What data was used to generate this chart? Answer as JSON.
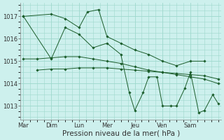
{
  "background_color": "#cdf0ed",
  "grid_color": "#9dd8cc",
  "line_color": "#1a5c2a",
  "xlabel": "Pression niveau de la mer( hPa )",
  "xlabel_fontsize": 7.5,
  "yticks": [
    1013,
    1014,
    1015,
    1016,
    1017
  ],
  "ylim": [
    1012.4,
    1017.6
  ],
  "xlim": [
    -0.1,
    7.1
  ],
  "day_labels": [
    "Mar",
    "Dim",
    "Lun",
    "Mer",
    "Jeu",
    "Ven",
    "Sam"
  ],
  "series": [
    {
      "x": [
        0.0,
        1.0,
        1.5,
        2.0,
        2.3,
        2.7,
        3.0,
        3.5,
        4.0,
        4.5,
        5.0,
        5.5,
        6.0,
        6.5
      ],
      "y": [
        1017.0,
        1017.1,
        1016.9,
        1016.5,
        1017.2,
        1017.3,
        1016.1,
        1015.8,
        1015.5,
        1015.3,
        1015.0,
        1014.8,
        1015.0,
        1015.0
      ]
    },
    {
      "x": [
        0.0,
        0.5,
        1.0,
        1.5,
        2.0,
        2.5,
        3.0,
        3.5,
        4.0,
        4.5,
        5.0,
        5.5,
        6.0,
        6.5,
        7.0
      ],
      "y": [
        1015.1,
        1015.1,
        1015.15,
        1015.2,
        1015.2,
        1015.1,
        1015.0,
        1014.9,
        1014.75,
        1014.6,
        1014.5,
        1014.4,
        1014.3,
        1014.2,
        1014.0
      ]
    },
    {
      "x": [
        0.5,
        1.0,
        1.5,
        2.0,
        2.5,
        3.0,
        3.5,
        4.0,
        4.5,
        5.0,
        5.5,
        6.0,
        6.5,
        7.0
      ],
      "y": [
        1014.6,
        1014.65,
        1014.65,
        1014.7,
        1014.7,
        1014.7,
        1014.65,
        1014.6,
        1014.55,
        1014.5,
        1014.45,
        1014.4,
        1014.35,
        1014.2
      ]
    },
    {
      "x": [
        0.0,
        1.0,
        1.5,
        2.0,
        2.5,
        3.0,
        3.5,
        3.8,
        4.0,
        4.3,
        4.5,
        4.8,
        5.0,
        5.3,
        5.5,
        5.8,
        6.0,
        6.3,
        6.5,
        6.8,
        7.0
      ],
      "y": [
        1017.0,
        1015.1,
        1016.5,
        1016.2,
        1015.6,
        1015.8,
        1015.3,
        1013.6,
        1012.8,
        1013.6,
        1014.3,
        1014.3,
        1013.0,
        1013.0,
        1013.0,
        1013.8,
        1014.5,
        1012.7,
        1012.8,
        1013.5,
        1013.1
      ]
    }
  ]
}
